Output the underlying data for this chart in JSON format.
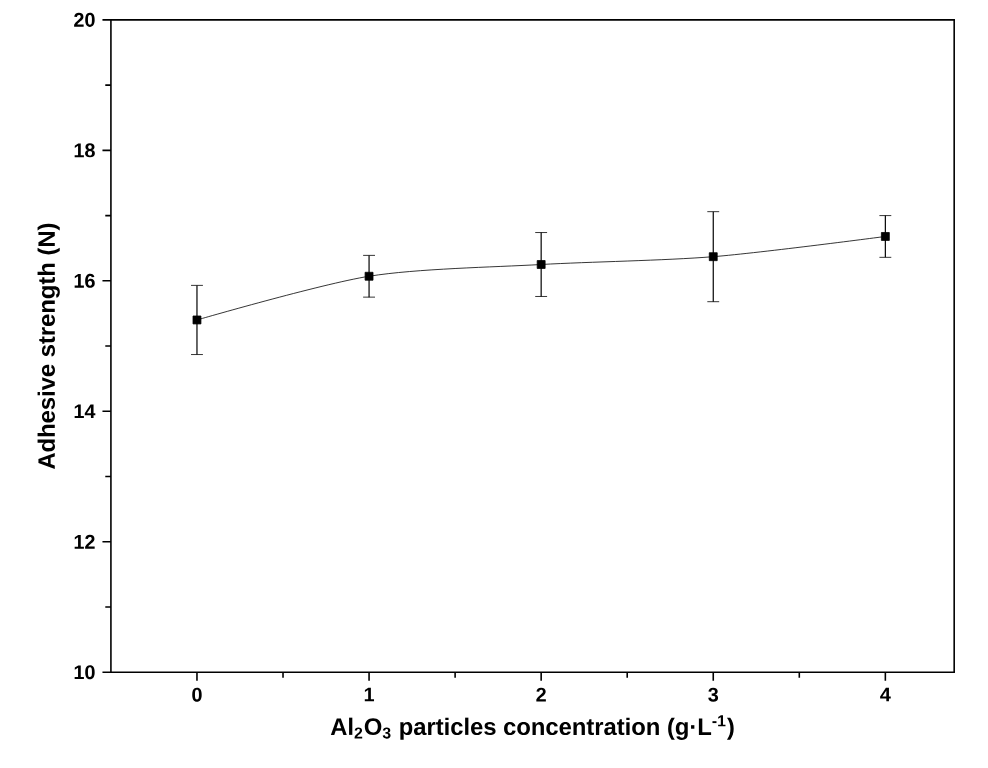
{
  "chart_data": {
    "type": "line",
    "xlabel": "Al$_{2}$O$_{3}$ particles concentration (g·L$^{-1}$)",
    "ylabel": "Adhesive strength (N)",
    "x": [
      0,
      1,
      2,
      3,
      4
    ],
    "values": [
      15.4,
      16.07,
      16.25,
      16.37,
      16.68
    ],
    "errors": [
      0.53,
      0.32,
      0.49,
      0.69,
      0.32
    ],
    "color": "#000000",
    "marker": "square",
    "line_style": "solid",
    "xlim": [
      -0.5,
      4.4
    ],
    "xticks": [
      0,
      1,
      2,
      3,
      4
    ],
    "ylim": [
      10,
      20
    ],
    "yticks": [
      10,
      12,
      14,
      16,
      18,
      20
    ]
  }
}
